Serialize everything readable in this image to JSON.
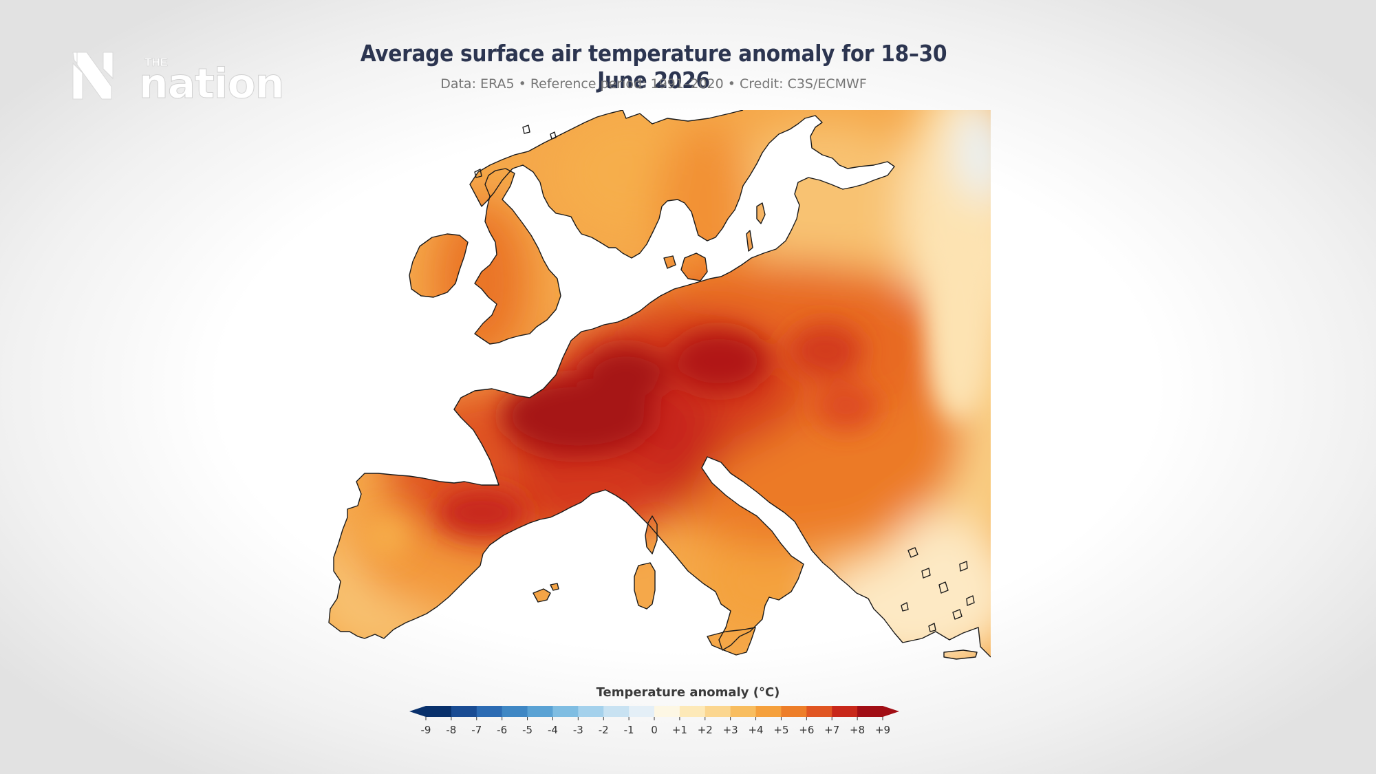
{
  "logo": {
    "small_text": "THE",
    "big_text": "nation"
  },
  "title": "Average surface air temperature anomaly for 18–30 June 2026",
  "subtitle": "Data: ERA5 • Reference period: 1991–2020 • Credit: C3S/ECMWF",
  "legend": {
    "title": "Temperature anomaly (°C)",
    "ticks": [
      "-9",
      "-8",
      "-7",
      "-6",
      "-5",
      "-4",
      "-3",
      "-2",
      "-1",
      "0",
      "+1",
      "+2",
      "+3",
      "+4",
      "+5",
      "+6",
      "+7",
      "+8",
      "+9"
    ],
    "colors": [
      "#08306b",
      "#1a4c93",
      "#2c6bb3",
      "#3f87c4",
      "#5aa2d4",
      "#7fbde2",
      "#a4d1ec",
      "#c8e2f2",
      "#e4eff7",
      "#fdf7e4",
      "#fde9b8",
      "#fbd68f",
      "#f8bd5f",
      "#f5a03c",
      "#ed7e29",
      "#e05522",
      "#c8281a",
      "#a10e15"
    ]
  },
  "map": {
    "region": "Europe",
    "classes": {
      "extreme": "#a01214",
      "very_high": "#c8281a",
      "high": "#e05522",
      "mid_high": "#ed7e29",
      "mid": "#f5a03c",
      "low": "#f8bd5f",
      "lower": "#fbd68f",
      "lowest": "#fde9b8",
      "neutral": "#e8f2f8"
    }
  }
}
